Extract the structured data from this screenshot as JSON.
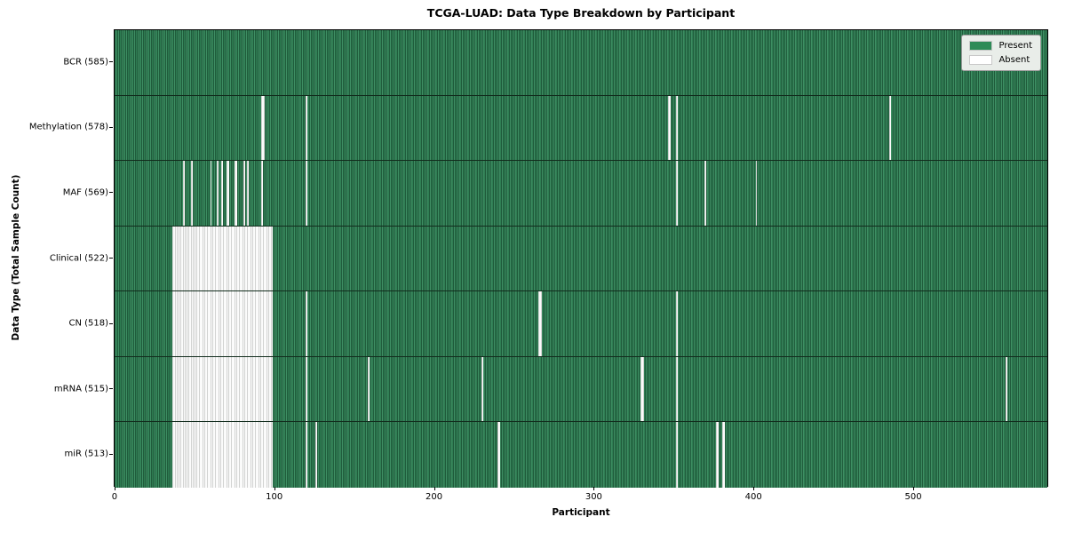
{
  "chart_data": {
    "type": "heatmap",
    "title": "TCGA-LUAD: Data Type Breakdown by Participant",
    "xlabel": "Participant",
    "ylabel": "Data Type (Total Sample Count)",
    "x_ticks": [
      0,
      100,
      200,
      300,
      400,
      500
    ],
    "xlim": [
      0,
      585
    ],
    "n_participants": 585,
    "grid": false,
    "colors": {
      "present": "#2e8b57",
      "present_fill_mid": "#2e7d52",
      "present_fill_dark": "#133c26",
      "present_fill_light": "#4f9f74",
      "absent": "#ffffff",
      "row_divider": "#122c1d",
      "legend_background": "#e9ede9"
    },
    "legend": {
      "position": "upper right",
      "entries": [
        {
          "label": "Present",
          "color": "#2e8b57"
        },
        {
          "label": "Absent",
          "color": "#ffffff"
        }
      ]
    },
    "rows": [
      {
        "name": "BCR",
        "label": "BCR (585)",
        "present_count": 585,
        "absent_ranges": []
      },
      {
        "name": "Methylation",
        "label": "Methylation (578)",
        "present_count": 578,
        "absent_ranges": [
          [
            92,
            93
          ],
          [
            120,
            120
          ],
          [
            347,
            348
          ],
          [
            352,
            352
          ],
          [
            486,
            486
          ]
        ]
      },
      {
        "name": "MAF",
        "label": "MAF (569)",
        "present_count": 569,
        "absent_ranges": [
          [
            43,
            43
          ],
          [
            48,
            48
          ],
          [
            60,
            60
          ],
          [
            64,
            64
          ],
          [
            67,
            67
          ],
          [
            70,
            71
          ],
          [
            75,
            76
          ],
          [
            81,
            81
          ],
          [
            83,
            83
          ],
          [
            92,
            92
          ],
          [
            120,
            120
          ],
          [
            352,
            352
          ],
          [
            370,
            370
          ],
          [
            402,
            402
          ]
        ]
      },
      {
        "name": "Clinical",
        "label": "Clinical (522)",
        "present_count": 522,
        "absent_ranges": [
          [
            36,
            98
          ]
        ]
      },
      {
        "name": "CN",
        "label": "CN (518)",
        "present_count": 518,
        "absent_ranges": [
          [
            36,
            98
          ],
          [
            120,
            120
          ],
          [
            266,
            267
          ],
          [
            352,
            352
          ]
        ]
      },
      {
        "name": "mRNA",
        "label": "mRNA (515)",
        "present_count": 515,
        "absent_ranges": [
          [
            36,
            98
          ],
          [
            120,
            120
          ],
          [
            159,
            159
          ],
          [
            230,
            230
          ],
          [
            330,
            331
          ],
          [
            352,
            352
          ],
          [
            559,
            559
          ]
        ]
      },
      {
        "name": "miR",
        "label": "miR (513)",
        "present_count": 513,
        "absent_ranges": [
          [
            36,
            98
          ],
          [
            120,
            120
          ],
          [
            126,
            126
          ],
          [
            240,
            241
          ],
          [
            352,
            352
          ],
          [
            377,
            378
          ],
          [
            381,
            382
          ]
        ]
      }
    ]
  }
}
